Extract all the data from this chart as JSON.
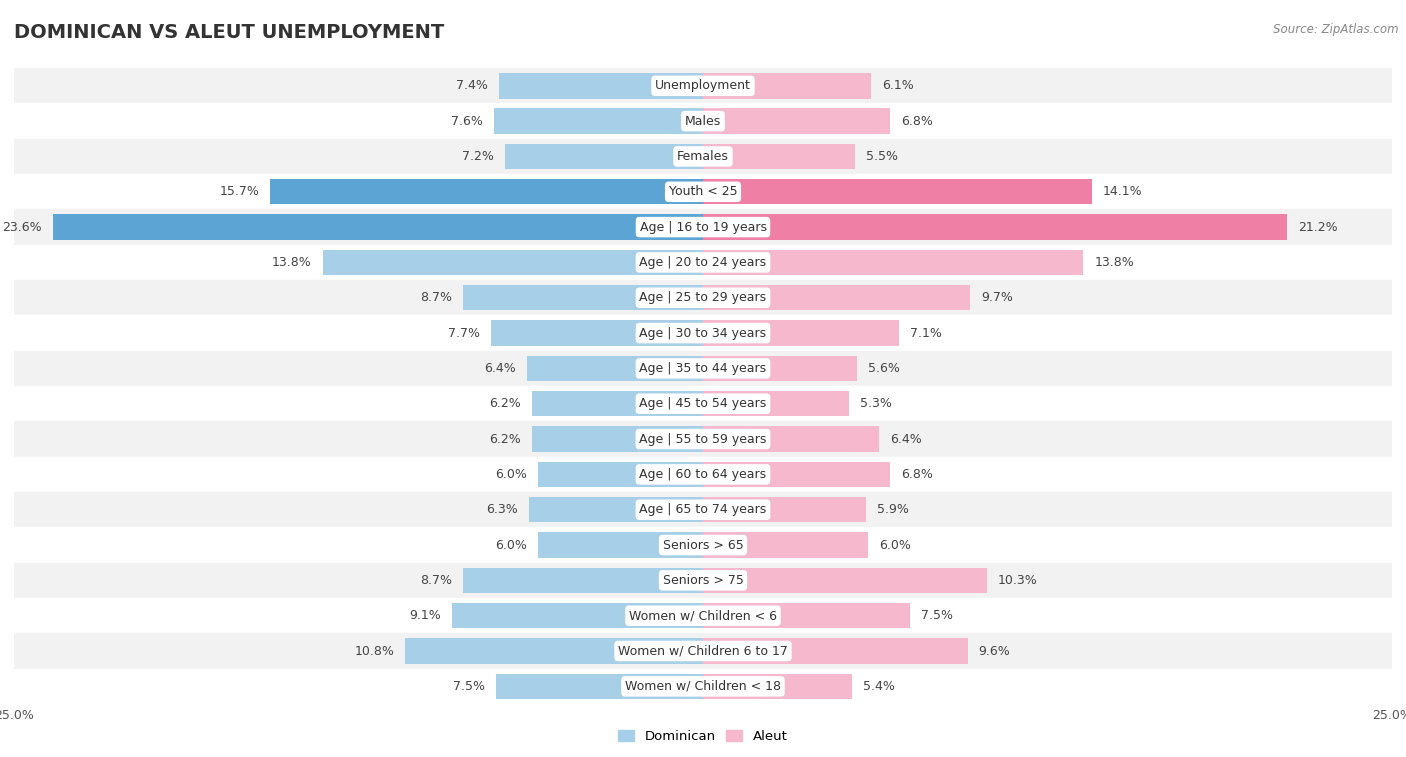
{
  "title": "DOMINICAN VS ALEUT UNEMPLOYMENT",
  "source": "Source: ZipAtlas.com",
  "categories": [
    "Unemployment",
    "Males",
    "Females",
    "Youth < 25",
    "Age | 16 to 19 years",
    "Age | 20 to 24 years",
    "Age | 25 to 29 years",
    "Age | 30 to 34 years",
    "Age | 35 to 44 years",
    "Age | 45 to 54 years",
    "Age | 55 to 59 years",
    "Age | 60 to 64 years",
    "Age | 65 to 74 years",
    "Seniors > 65",
    "Seniors > 75",
    "Women w/ Children < 6",
    "Women w/ Children 6 to 17",
    "Women w/ Children < 18"
  ],
  "dominican": [
    7.4,
    7.6,
    7.2,
    15.7,
    23.6,
    13.8,
    8.7,
    7.7,
    6.4,
    6.2,
    6.2,
    6.0,
    6.3,
    6.0,
    8.7,
    9.1,
    10.8,
    7.5
  ],
  "aleut": [
    6.1,
    6.8,
    5.5,
    14.1,
    21.2,
    13.8,
    9.7,
    7.1,
    5.6,
    5.3,
    6.4,
    6.8,
    5.9,
    6.0,
    10.3,
    7.5,
    9.6,
    5.4
  ],
  "dominican_color_normal": "#a8cfe8",
  "aleut_color_normal": "#f5b8cc",
  "dominican_color_highlight": "#5ba4d4",
  "aleut_color_highlight": "#ef7fa4",
  "highlight_rows": [
    3,
    4
  ],
  "axis_max": 25.0,
  "legend_dominican": "Dominican",
  "legend_aleut": "Aleut",
  "row_bg_light": "#f2f2f2",
  "row_bg_dark": "#e8e8e8",
  "bar_height": 0.72,
  "title_fontsize": 14,
  "label_fontsize": 9,
  "category_fontsize": 9
}
